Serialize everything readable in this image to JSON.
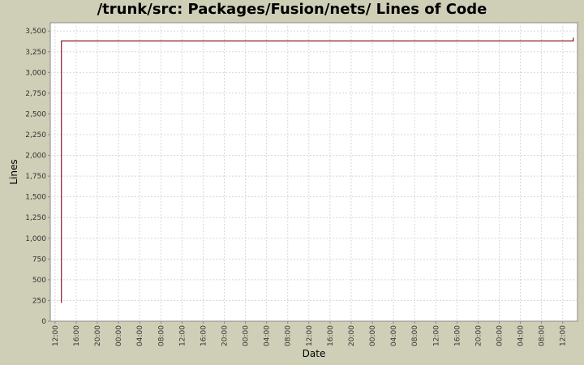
{
  "chart_data": {
    "type": "line",
    "title": "/trunk/src: Packages/Fusion/nets/ Lines of Code",
    "xlabel": "Date",
    "ylabel": "Lines",
    "x_tick_labels": [
      "12:00",
      "16:00",
      "20:00",
      "00:00",
      "04:00",
      "08:00",
      "12:00",
      "16:00",
      "20:00",
      "00:00",
      "04:00",
      "08:00",
      "12:00",
      "16:00",
      "20:00",
      "00:00",
      "04:00",
      "08:00",
      "12:00",
      "16:00",
      "20:00",
      "00:00",
      "04:00",
      "08:00",
      "12:00"
    ],
    "x_tick_hours": [
      0,
      4,
      8,
      12,
      16,
      20,
      24,
      28,
      32,
      36,
      40,
      44,
      48,
      52,
      56,
      60,
      64,
      68,
      72,
      76,
      80,
      84,
      88,
      92,
      96
    ],
    "xlim_hours": [
      -0.9,
      98.8
    ],
    "ylim": [
      0,
      3600
    ],
    "y_ticks": [
      0,
      250,
      500,
      750,
      1000,
      1250,
      1500,
      1750,
      2000,
      2250,
      2500,
      2750,
      3000,
      3250,
      3500
    ],
    "y_tick_labels": [
      "0",
      "250",
      "500",
      "750",
      "1,000",
      "1,250",
      "1,500",
      "1,750",
      "2,000",
      "2,250",
      "2,500",
      "2,750",
      "3,000",
      "3,250",
      "3,500"
    ],
    "grid": true,
    "background": "#cfcfb8",
    "plot_background": "#ffffff",
    "grid_color": "#d8d8d8",
    "series": [
      {
        "color": "#8b1a2b",
        "x_hours": [
          1.2,
          1.2,
          98.0,
          98.0
        ],
        "values": [
          220,
          3380,
          3380,
          3420
        ]
      }
    ]
  }
}
